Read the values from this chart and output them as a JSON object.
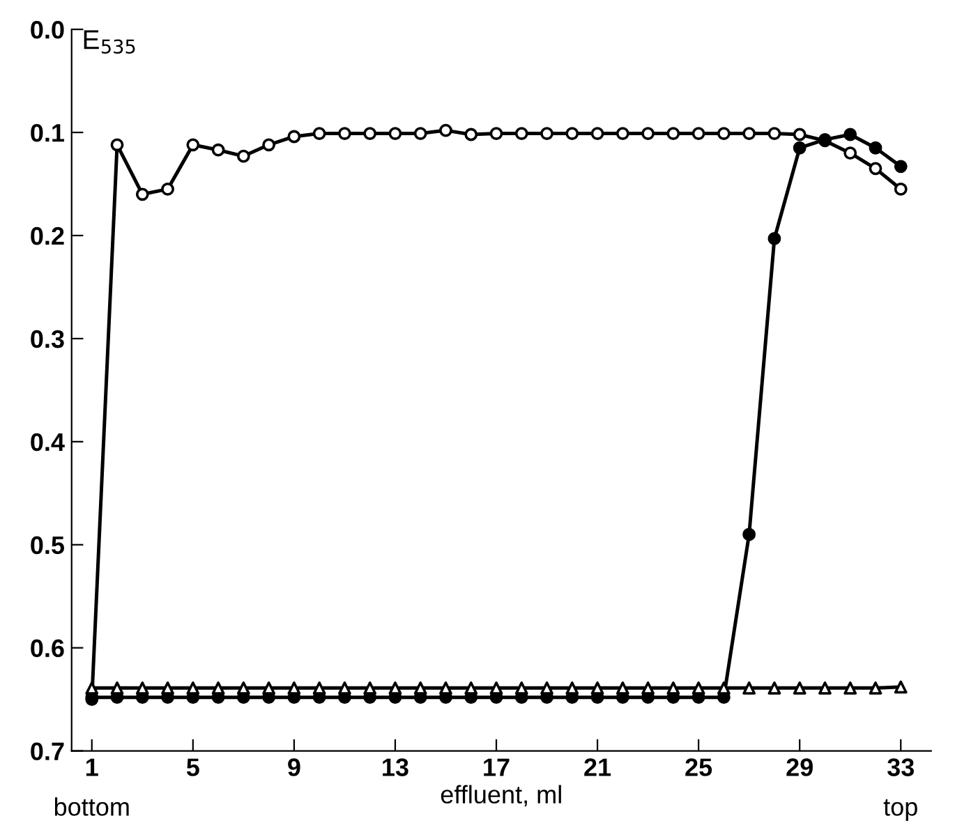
{
  "chart_data": {
    "type": "line",
    "ylabel": "E$_{535}$",
    "xlabel": "effluent, ml",
    "annotations": [
      "bottom",
      "top"
    ],
    "xlim": [
      0.2,
      34.2
    ],
    "xticks": [
      1,
      5,
      9,
      13,
      17,
      21,
      25,
      29,
      33
    ],
    "ylim": [
      0.7,
      0.0
    ],
    "yticks": [
      {
        "value": 0.0,
        "label": "0.0"
      },
      {
        "value": 0.1,
        "label": "0.1"
      },
      {
        "value": 0.2,
        "label": "0.2"
      },
      {
        "value": 0.3,
        "label": "0.3"
      },
      {
        "value": 0.4,
        "label": "0.4"
      },
      {
        "value": 0.5,
        "label": "0.5"
      },
      {
        "value": 0.6,
        "label": "0.6"
      },
      {
        "value": 0.7,
        "label": "0.7"
      }
    ],
    "grid": false,
    "legend": false,
    "line_style": "solid",
    "x": [
      1,
      2,
      3,
      4,
      5,
      6,
      7,
      8,
      9,
      10,
      11,
      12,
      13,
      14,
      15,
      16,
      17,
      18,
      19,
      20,
      21,
      22,
      23,
      24,
      25,
      26,
      27,
      28,
      29,
      30,
      31,
      32,
      33
    ],
    "series": [
      {
        "color": "#000000",
        "marker": "triangle",
        "colors": [
          "#ffffff",
          "#ffffff",
          "#ffffff",
          "#ffffff",
          "#ffffff",
          "#ffffff",
          "#ffffff",
          "#ffffff",
          "#ffffff",
          "#ffffff",
          "#ffffff",
          "#ffffff",
          "#ffffff",
          "#ffffff",
          "#ffffff",
          "#ffffff",
          "#ffffff",
          "#ffffff",
          "#ffffff",
          "#ffffff",
          "#ffffff",
          "#ffffff",
          "#ffffff",
          "#ffffff",
          "#ffffff",
          "#ffffff",
          "#ffffff",
          "#ffffff",
          "#ffffff",
          "#ffffff",
          "#ffffff",
          "#ffffff",
          "#ffffff"
        ],
        "values": [
          0.639,
          0.639,
          0.639,
          0.639,
          0.639,
          0.639,
          0.639,
          0.639,
          0.639,
          0.639,
          0.639,
          0.639,
          0.639,
          0.639,
          0.639,
          0.639,
          0.639,
          0.639,
          0.639,
          0.639,
          0.639,
          0.639,
          0.639,
          0.639,
          0.639,
          0.639,
          0.639,
          0.639,
          0.639,
          0.639,
          0.639,
          0.639,
          0.638
        ]
      },
      {
        "color": "#000000",
        "marker": "circle",
        "colors": [
          "#000000",
          "#000000",
          "#000000",
          "#000000",
          "#000000",
          "#000000",
          "#000000",
          "#000000",
          "#000000",
          "#000000",
          "#000000",
          "#000000",
          "#000000",
          "#000000",
          "#000000",
          "#000000",
          "#000000",
          "#000000",
          "#000000",
          "#000000",
          "#000000",
          "#000000",
          "#000000",
          "#000000",
          "#000000",
          "#000000",
          "#000000",
          "#000000",
          "#000000",
          "#000000",
          "#000000",
          "#000000",
          "#000000"
        ],
        "values": [
          0.648,
          0.648,
          0.648,
          0.648,
          0.648,
          0.648,
          0.648,
          0.648,
          0.648,
          0.648,
          0.648,
          0.648,
          0.648,
          0.648,
          0.648,
          0.648,
          0.648,
          0.648,
          0.648,
          0.648,
          0.648,
          0.648,
          0.648,
          0.648,
          0.648,
          0.648,
          0.49,
          0.203,
          0.115,
          0.107,
          0.102,
          0.115,
          0.133
        ]
      },
      {
        "color": "#000000",
        "marker": "circle",
        "colors": [
          "#ffffff",
          "#ffffff",
          "#ffffff",
          "#ffffff",
          "#ffffff",
          "#ffffff",
          "#ffffff",
          "#ffffff",
          "#ffffff",
          "#ffffff",
          "#ffffff",
          "#ffffff",
          "#ffffff",
          "#ffffff",
          "#ffffff",
          "#ffffff",
          "#ffffff",
          "#ffffff",
          "#ffffff",
          "#ffffff",
          "#ffffff",
          "#ffffff",
          "#ffffff",
          "#ffffff",
          "#ffffff",
          "#ffffff",
          "#ffffff",
          "#ffffff",
          "#ffffff",
          "#ffffff",
          "#ffffff",
          "#ffffff",
          "#ffffff"
        ],
        "values": [
          0.65,
          0.112,
          0.16,
          0.155,
          0.112,
          0.117,
          0.123,
          0.112,
          0.104,
          0.101,
          0.101,
          0.101,
          0.101,
          0.101,
          0.098,
          0.102,
          0.101,
          0.101,
          0.101,
          0.101,
          0.101,
          0.101,
          0.101,
          0.101,
          0.101,
          0.101,
          0.101,
          0.101,
          0.102,
          0.108,
          0.12,
          0.135,
          0.155
        ]
      }
    ]
  }
}
